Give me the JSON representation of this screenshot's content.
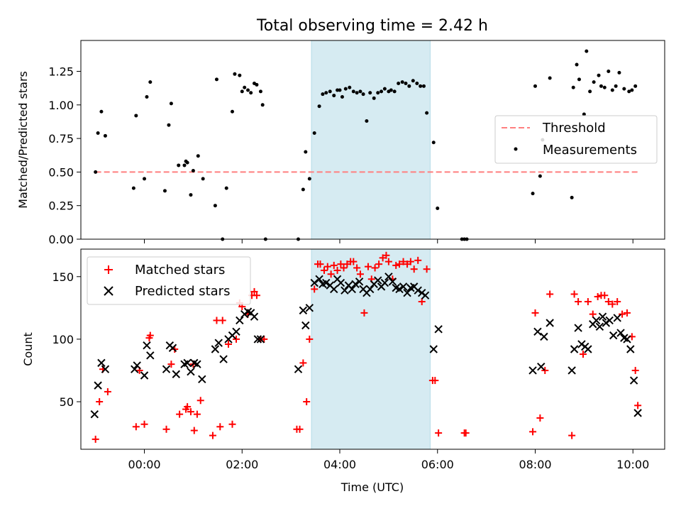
{
  "figure_title": "Total observing time = 2.42 h",
  "colors": {
    "threshold": "#ff7f7f",
    "measurement": "#000000",
    "matched": "#ff0000",
    "predicted": "#000000",
    "shade": "#add8e6"
  },
  "chart_data": [
    {
      "type": "scatter",
      "ylabel": "Matched/Predicted stars",
      "xlabel": "",
      "xlim": [
        -1.3,
        10.65
      ],
      "ylim": [
        0.0,
        1.48
      ],
      "x_unit": "hours (UTC), values before 00:00 are negative",
      "xticks": [
        0,
        2,
        4,
        6,
        8,
        10
      ],
      "xtick_labels": [
        "00:00",
        "02:00",
        "04:00",
        "06:00",
        "08:00",
        "10:00"
      ],
      "yticks": [
        0.0,
        0.25,
        0.5,
        0.75,
        1.0,
        1.25
      ],
      "ytick_labels": [
        "0.00",
        "0.25",
        "0.50",
        "0.75",
        "1.00",
        "1.25"
      ],
      "shaded_span": [
        3.42,
        5.85
      ],
      "legend_position": "center-right",
      "threshold": {
        "name": "Threshold",
        "y": 0.5,
        "x_range": [
          -1.0,
          10.1
        ]
      },
      "series": [
        {
          "name": "Measurements",
          "x": [
            -1.0,
            -0.95,
            -0.88,
            -0.8,
            -0.22,
            -0.17,
            0.0,
            0.05,
            0.12,
            0.42,
            0.5,
            0.55,
            0.7,
            0.82,
            0.85,
            0.88,
            0.95,
            1.0,
            1.1,
            1.2,
            1.45,
            1.48,
            1.6,
            1.68,
            1.8,
            1.85,
            1.95,
            2.0,
            2.05,
            2.12,
            2.18,
            2.25,
            2.3,
            2.38,
            2.42,
            2.48,
            3.15,
            3.25,
            3.3,
            3.38,
            3.48,
            3.58,
            3.65,
            3.72,
            3.8,
            3.88,
            3.95,
            4.0,
            4.05,
            4.12,
            4.2,
            4.28,
            4.35,
            4.42,
            4.48,
            4.55,
            4.62,
            4.7,
            4.78,
            4.85,
            4.92,
            5.0,
            5.05,
            5.12,
            5.2,
            5.28,
            5.35,
            5.42,
            5.5,
            5.58,
            5.65,
            5.72,
            5.78,
            5.92,
            6.0,
            6.5,
            6.55,
            6.6,
            7.95,
            8.0,
            8.1,
            8.15,
            8.3,
            8.75,
            8.78,
            8.85,
            8.9,
            9.0,
            9.05,
            9.12,
            9.2,
            9.3,
            9.35,
            9.42,
            9.5,
            9.58,
            9.65,
            9.72,
            9.82,
            9.92,
            9.98,
            10.05
          ],
          "y": [
            0.5,
            0.79,
            0.95,
            0.77,
            0.38,
            0.92,
            0.45,
            1.06,
            1.17,
            0.36,
            0.85,
            1.01,
            0.55,
            0.55,
            0.58,
            0.57,
            0.33,
            0.51,
            0.62,
            0.45,
            0.25,
            1.19,
            0.0,
            0.38,
            0.95,
            1.23,
            1.22,
            1.1,
            1.13,
            1.11,
            1.09,
            1.16,
            1.15,
            1.1,
            1.0,
            0.0,
            0.0,
            0.37,
            0.65,
            0.45,
            0.79,
            0.99,
            1.08,
            1.09,
            1.1,
            1.07,
            1.11,
            1.11,
            1.06,
            1.12,
            1.13,
            1.1,
            1.09,
            1.1,
            1.08,
            0.88,
            1.09,
            1.05,
            1.09,
            1.1,
            1.12,
            1.1,
            1.11,
            1.1,
            1.16,
            1.17,
            1.16,
            1.14,
            1.18,
            1.16,
            1.14,
            1.14,
            0.94,
            0.72,
            0.23,
            0.0,
            0.0,
            0.0,
            0.34,
            1.14,
            0.47,
            0.74,
            1.2,
            0.31,
            1.13,
            1.3,
            1.19,
            0.93,
            1.4,
            1.1,
            1.17,
            1.22,
            1.14,
            1.13,
            1.25,
            1.11,
            1.14,
            1.24,
            1.12,
            1.1,
            1.11,
            1.14
          ]
        }
      ]
    },
    {
      "type": "scatter",
      "ylabel": "Count",
      "xlabel": "Time (UTC)",
      "xlim": [
        -1.3,
        10.65
      ],
      "ylim": [
        12,
        172
      ],
      "x_unit": "hours (UTC), values before 00:00 are negative",
      "xticks": [
        0,
        2,
        4,
        6,
        8,
        10
      ],
      "xtick_labels": [
        "00:00",
        "02:00",
        "04:00",
        "06:00",
        "08:00",
        "10:00"
      ],
      "yticks": [
        50,
        100,
        150
      ],
      "ytick_labels": [
        "50",
        "100",
        "150"
      ],
      "shaded_span": [
        3.42,
        5.85
      ],
      "legend_position": "top-left",
      "series": [
        {
          "name": "Matched stars",
          "marker": "+",
          "x": [
            -1.0,
            -0.92,
            -0.85,
            -0.75,
            -0.17,
            -0.1,
            0.0,
            0.1,
            0.12,
            0.45,
            0.55,
            0.62,
            0.72,
            0.85,
            0.88,
            0.95,
            1.0,
            1.02,
            1.08,
            1.15,
            1.4,
            1.48,
            1.55,
            1.6,
            1.72,
            1.8,
            1.88,
            1.95,
            2.0,
            2.12,
            2.2,
            2.25,
            2.3,
            2.38,
            2.45,
            3.12,
            3.18,
            3.25,
            3.32,
            3.38,
            3.48,
            3.55,
            3.6,
            3.68,
            3.75,
            3.82,
            3.88,
            3.95,
            4.02,
            4.08,
            4.15,
            4.22,
            4.28,
            4.35,
            4.42,
            4.5,
            4.58,
            4.65,
            4.72,
            4.8,
            4.88,
            4.95,
            5.0,
            5.08,
            5.15,
            5.22,
            5.3,
            5.38,
            5.45,
            5.52,
            5.6,
            5.68,
            5.78,
            5.9,
            5.95,
            6.02,
            6.55,
            6.58,
            7.95,
            8.0,
            8.1,
            8.2,
            8.3,
            8.75,
            8.8,
            8.88,
            8.98,
            9.08,
            9.18,
            9.28,
            9.35,
            9.42,
            9.5,
            9.58,
            9.68,
            9.78,
            9.88,
            9.98,
            10.05,
            10.1
          ],
          "y": [
            20,
            50,
            76,
            58,
            30,
            75,
            32,
            101,
            103,
            28,
            80,
            92,
            40,
            44,
            46,
            42,
            80,
            27,
            40,
            51,
            23,
            115,
            30,
            115,
            96,
            32,
            100,
            129,
            126,
            120,
            135,
            138,
            135,
            100,
            100,
            28,
            28,
            81,
            50,
            100,
            140,
            160,
            160,
            155,
            158,
            152,
            159,
            155,
            160,
            157,
            160,
            162,
            162,
            157,
            152,
            121,
            158,
            148,
            157,
            160,
            165,
            167,
            162,
            148,
            159,
            160,
            162,
            160,
            162,
            156,
            163,
            130,
            156,
            67,
            67,
            25,
            25,
            25,
            26,
            121,
            37,
            75,
            136,
            23,
            136,
            130,
            88,
            130,
            120,
            134,
            135,
            135,
            130,
            128,
            130,
            120,
            121,
            102,
            75,
            47
          ]
        },
        {
          "name": "Predicted stars",
          "marker": "x",
          "x": [
            -1.02,
            -0.95,
            -0.88,
            -0.8,
            -0.2,
            -0.15,
            0.0,
            0.05,
            0.12,
            0.45,
            0.52,
            0.58,
            0.65,
            0.82,
            0.88,
            0.95,
            1.02,
            1.08,
            1.18,
            1.45,
            1.52,
            1.62,
            1.72,
            1.8,
            1.88,
            1.95,
            2.05,
            2.12,
            2.18,
            2.25,
            2.32,
            2.38,
            3.15,
            3.25,
            3.3,
            3.38,
            3.48,
            3.58,
            3.65,
            3.72,
            3.8,
            3.88,
            3.95,
            4.02,
            4.1,
            4.18,
            4.25,
            4.32,
            4.4,
            4.48,
            4.55,
            4.62,
            4.7,
            4.78,
            4.85,
            4.92,
            5.0,
            5.08,
            5.15,
            5.22,
            5.3,
            5.38,
            5.45,
            5.52,
            5.6,
            5.68,
            5.75,
            5.92,
            6.02,
            7.95,
            8.05,
            8.12,
            8.18,
            8.3,
            8.75,
            8.8,
            8.88,
            8.95,
            9.02,
            9.08,
            9.18,
            9.25,
            9.32,
            9.38,
            9.45,
            9.52,
            9.6,
            9.68,
            9.75,
            9.82,
            9.88,
            9.95,
            10.02,
            10.1
          ],
          "y": [
            40,
            63,
            81,
            76,
            76,
            79,
            71,
            95,
            87,
            76,
            95,
            93,
            72,
            80,
            81,
            74,
            81,
            80,
            68,
            92,
            97,
            84,
            100,
            103,
            106,
            115,
            120,
            122,
            121,
            118,
            100,
            100,
            76,
            123,
            111,
            125,
            145,
            148,
            144,
            145,
            143,
            140,
            148,
            145,
            139,
            143,
            140,
            144,
            146,
            140,
            137,
            140,
            144,
            147,
            142,
            145,
            150,
            146,
            141,
            140,
            142,
            137,
            141,
            142,
            139,
            137,
            135,
            92,
            108,
            75,
            106,
            78,
            102,
            113,
            75,
            92,
            109,
            96,
            94,
            92,
            112,
            115,
            110,
            118,
            113,
            115,
            103,
            117,
            105,
            101,
            100,
            92,
            67,
            41
          ]
        }
      ]
    }
  ]
}
